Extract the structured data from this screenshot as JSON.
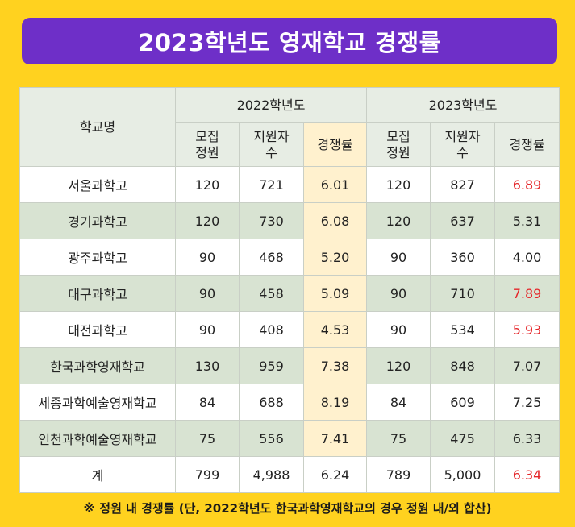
{
  "title": "2023학년도 영재학교 경쟁률",
  "header": {
    "school_col": "학교명",
    "year_2022": "2022학년도",
    "year_2023": "2023학년도",
    "quota": "모집\n정원",
    "applicants": "지원자\n수",
    "rate": "경쟁률"
  },
  "rows": [
    {
      "school": "서울과학고",
      "q22": "120",
      "a22": "721",
      "r22": "6.01",
      "q23": "120",
      "a23": "827",
      "r23": "6.89",
      "r23_up": true
    },
    {
      "school": "경기과학고",
      "q22": "120",
      "a22": "730",
      "r22": "6.08",
      "q23": "120",
      "a23": "637",
      "r23": "5.31",
      "r23_up": false
    },
    {
      "school": "광주과학고",
      "q22": "90",
      "a22": "468",
      "r22": "5.20",
      "q23": "90",
      "a23": "360",
      "r23": "4.00",
      "r23_up": false
    },
    {
      "school": "대구과학고",
      "q22": "90",
      "a22": "458",
      "r22": "5.09",
      "q23": "90",
      "a23": "710",
      "r23": "7.89",
      "r23_up": true
    },
    {
      "school": "대전과학고",
      "q22": "90",
      "a22": "408",
      "r22": "4.53",
      "q23": "90",
      "a23": "534",
      "r23": "5.93",
      "r23_up": true
    },
    {
      "school": "한국과학영재학교",
      "q22": "130",
      "a22": "959",
      "r22": "7.38",
      "q23": "120",
      "a23": "848",
      "r23": "7.07",
      "r23_up": false
    },
    {
      "school": "세종과학예술영재학교",
      "q22": "84",
      "a22": "688",
      "r22": "8.19",
      "q23": "84",
      "a23": "609",
      "r23": "7.25",
      "r23_up": false
    },
    {
      "school": "인천과학예술영재학교",
      "q22": "75",
      "a22": "556",
      "r22": "7.41",
      "q23": "75",
      "a23": "475",
      "r23": "6.33",
      "r23_up": false
    }
  ],
  "total": {
    "school": "계",
    "q22": "799",
    "a22": "4,988",
    "r22": "6.24",
    "q23": "789",
    "a23": "5,000",
    "r23": "6.34",
    "r23_up": true
  },
  "footnote": "※ 정원 내 경쟁률 (단, 2022학년도 한국과학영재학교의 경우 정원 내/외 합산)",
  "colors": {
    "background": "#FFD21F",
    "banner": "#6E2FC8",
    "highlight_red": "#E5262A",
    "rate_fill": "#FFF1CE",
    "row_alt": "#D8E3D2"
  }
}
